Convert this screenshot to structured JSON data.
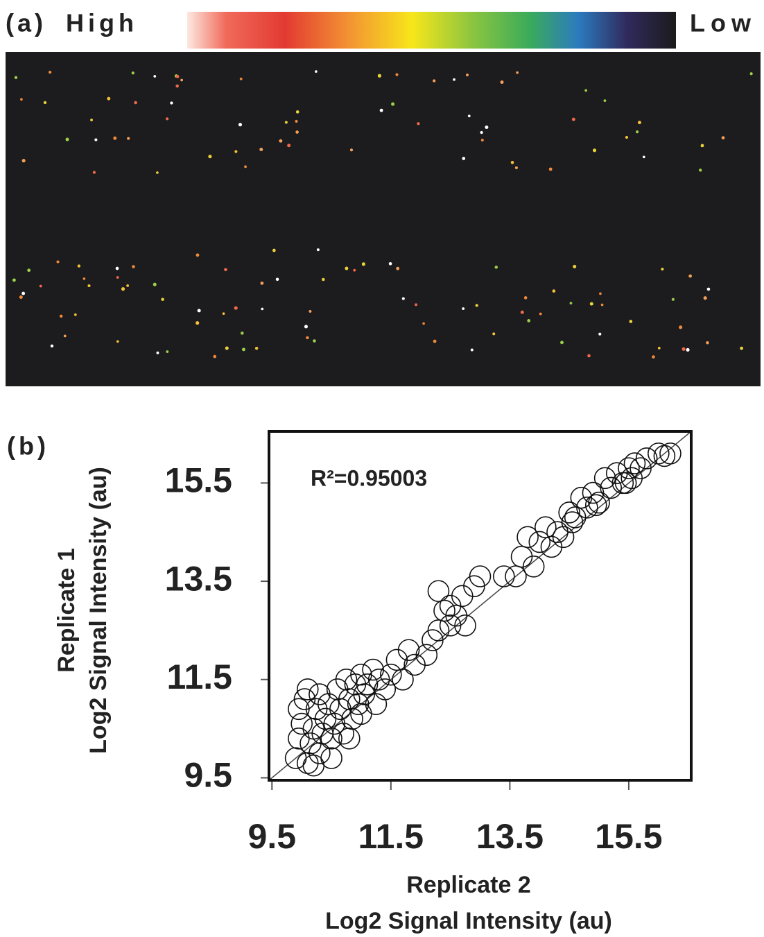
{
  "panel_a": {
    "label": "(a)",
    "high_label": "High",
    "low_label": "Low"
  },
  "chart_data": {
    "type": "scatter",
    "panel_label": "(b)",
    "annotation": "R²=0.95003",
    "xlabel": [
      "Replicate 2",
      "Log2  Signal Intensity (au)"
    ],
    "ylabel": [
      "Replicate 1",
      "Log2 Signal Intensity (au)"
    ],
    "xlim": [
      9.45,
      16.55
    ],
    "ylim": [
      9.45,
      16.55
    ],
    "xticks": [
      9.5,
      11.5,
      13.5,
      15.5
    ],
    "yticks": [
      9.5,
      11.5,
      13.5,
      15.5
    ],
    "identity_line": true,
    "color": "#111111",
    "x": [
      9.9,
      9.95,
      10.0,
      9.95,
      10.05,
      10.1,
      10.15,
      10.2,
      10.1,
      10.25,
      10.3,
      10.35,
      10.4,
      10.3,
      10.45,
      10.5,
      10.55,
      10.6,
      10.65,
      10.7,
      10.75,
      10.8,
      10.85,
      10.9,
      10.95,
      11.0,
      11.05,
      11.1,
      11.2,
      11.3,
      11.4,
      11.5,
      11.6,
      11.7,
      11.8,
      11.9,
      12.1,
      12.2,
      12.3,
      12.4,
      12.5,
      12.6,
      12.7,
      12.75,
      12.9,
      13.0,
      12.5,
      12.3,
      13.4,
      13.6,
      13.7,
      13.8,
      13.9,
      14.0,
      14.1,
      14.2,
      14.3,
      14.4,
      14.5,
      14.6,
      14.7,
      14.8,
      14.9,
      15.0,
      15.1,
      15.2,
      15.3,
      15.4,
      15.5,
      15.6,
      15.7,
      15.8,
      16.0,
      16.1,
      16.2,
      15.55,
      15.45,
      14.95,
      14.55,
      11.25,
      11.0,
      10.8,
      10.5,
      10.2
    ],
    "y": [
      9.9,
      10.3,
      10.6,
      10.9,
      11.1,
      9.8,
      10.2,
      10.5,
      11.3,
      10.9,
      10.0,
      10.4,
      10.7,
      11.2,
      11.0,
      10.3,
      10.6,
      11.3,
      10.9,
      10.4,
      11.5,
      11.1,
      10.7,
      11.4,
      11.0,
      11.6,
      11.2,
      11.4,
      11.7,
      11.5,
      11.3,
      11.6,
      11.9,
      11.5,
      12.1,
      11.8,
      12.0,
      12.3,
      12.5,
      12.9,
      12.6,
      12.8,
      13.2,
      12.6,
      13.4,
      13.6,
      13.0,
      13.3,
      13.6,
      13.6,
      14.0,
      14.4,
      13.8,
      14.3,
      14.6,
      14.2,
      14.5,
      14.4,
      14.9,
      14.8,
      15.2,
      15.0,
      15.3,
      15.1,
      15.6,
      15.4,
      15.7,
      15.5,
      15.8,
      15.9,
      15.8,
      16.0,
      16.1,
      16.05,
      16.1,
      15.6,
      15.5,
      15.05,
      14.7,
      11.0,
      10.8,
      10.3,
      9.9,
      9.75
    ]
  }
}
